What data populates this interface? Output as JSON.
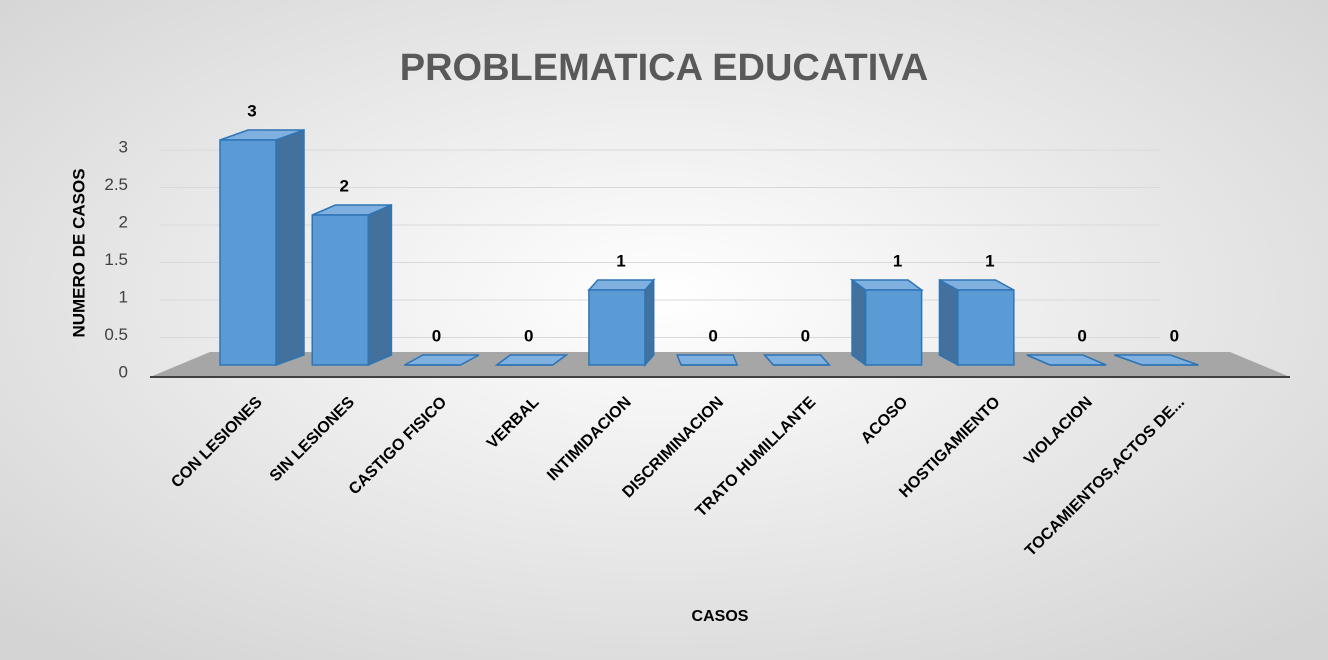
{
  "chart_data": {
    "type": "bar3d",
    "title": "PROBLEMATICA EDUCATIVA",
    "x_label": "CASOS",
    "y_label": "NUMERO DE CASOS",
    "categories": [
      "CON LESIONES",
      "SIN LESIONES",
      "CASTIGO FISICO",
      "VERBAL",
      "INTIMIDACION",
      "DISCRIMINACION",
      "TRATO HUMILLANTE",
      "ACOSO",
      "HOSTIGAMIENTO",
      "VIOLACION",
      "TOCAMIENTOS,ACTOS DE..."
    ],
    "values": [
      3,
      2,
      0,
      0,
      1,
      0,
      0,
      1,
      1,
      0,
      0
    ],
    "color": "#5b9bd5",
    "ylim": [
      0,
      3
    ],
    "yticks": [
      0,
      0.5,
      1,
      1.5,
      2,
      2.5,
      3
    ],
    "grid": true
  }
}
